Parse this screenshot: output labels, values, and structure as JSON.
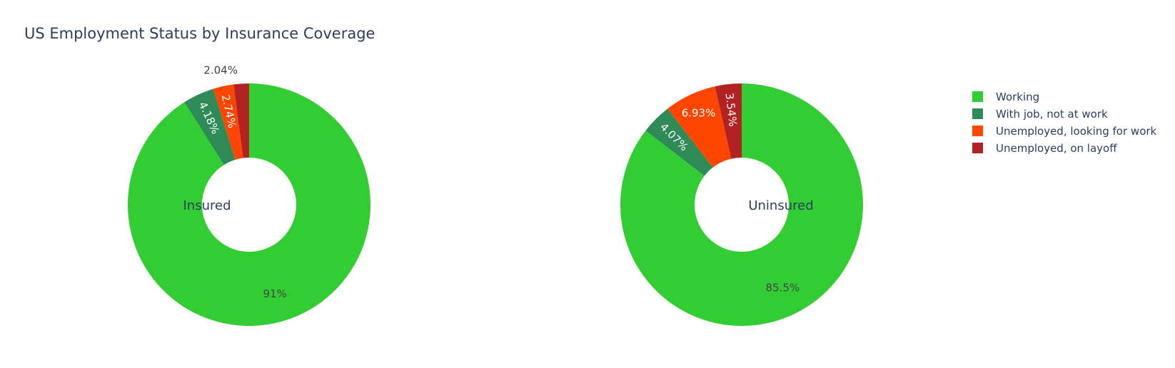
{
  "title": "US Employment Status by Insurance Coverage",
  "colors": {
    "Working": "#32cd32",
    "With job, not at work": "#2e8b57",
    "Unemployed, looking for work": "#ff4500",
    "Unemployed, on layoff": "#b22222"
  },
  "legend": {
    "placement": "top-right",
    "items": [
      "Working",
      "With job, not at work",
      "Unemployed, looking for work",
      "Unemployed, on layoff"
    ]
  },
  "chart_data": [
    {
      "type": "pie",
      "hole": true,
      "title": "Insured",
      "categories": [
        "Working",
        "With job, not at work",
        "Unemployed, looking for work",
        "Unemployed, on layoff"
      ],
      "values": [
        91.0,
        4.18,
        2.74,
        2.04
      ],
      "labels": [
        "91%",
        "4.18%",
        "2.74%",
        "2.04%"
      ]
    },
    {
      "type": "pie",
      "hole": true,
      "title": "Uninsured",
      "categories": [
        "Working",
        "With job, not at work",
        "Unemployed, looking for work",
        "Unemployed, on layoff"
      ],
      "values": [
        85.5,
        4.07,
        6.93,
        3.54
      ],
      "labels": [
        "85.5%",
        "4.07%",
        "6.93%",
        "3.54%"
      ]
    }
  ]
}
